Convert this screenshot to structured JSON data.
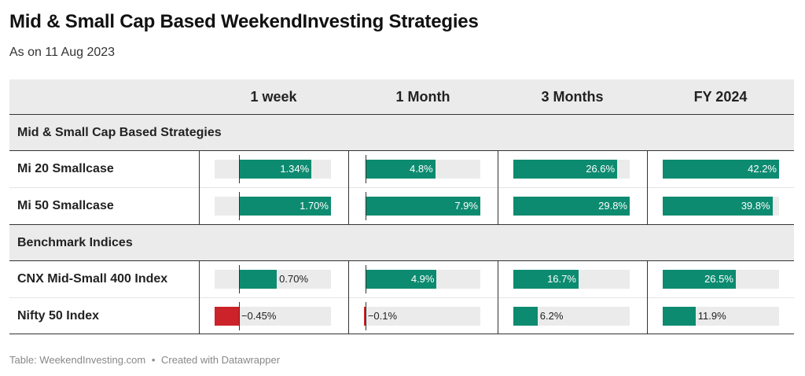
{
  "title": "Mid & Small Cap Based WeekendInvesting Strategies",
  "subtitle": "As on 11 Aug 2023",
  "footer": {
    "source": "Table: WeekendInvesting.com",
    "separator": "•",
    "credit": "Created with Datawrapper"
  },
  "colors": {
    "positive": "#0d8b70",
    "negative": "#cc2229",
    "track": "#ebebeb",
    "header_bg": "#ebebeb"
  },
  "chart_data": {
    "type": "table",
    "columns": [
      "1 week",
      "1 Month",
      "3 Months",
      "FY 2024"
    ],
    "column_ranges": [
      [
        -0.45,
        1.7
      ],
      [
        -0.1,
        7.9
      ],
      [
        0,
        29.8
      ],
      [
        0,
        42.2
      ]
    ],
    "groups": [
      {
        "label": "Mid & Small Cap Based Strategies",
        "rows": [
          {
            "name": "Mi 20 Smallcase",
            "values": [
              1.34,
              4.8,
              26.6,
              42.2
            ],
            "labels": [
              "1.34%",
              "4.8%",
              "26.6%",
              "42.2%"
            ]
          },
          {
            "name": "Mi 50 Smallcase",
            "values": [
              1.7,
              7.9,
              29.8,
              39.8
            ],
            "labels": [
              "1.70%",
              "7.9%",
              "29.8%",
              "39.8%"
            ]
          }
        ]
      },
      {
        "label": "Benchmark Indices",
        "rows": [
          {
            "name": "CNX Mid-Small 400 Index",
            "values": [
              0.7,
              4.9,
              16.7,
              26.5
            ],
            "labels": [
              "0.70%",
              "4.9%",
              "16.7%",
              "26.5%"
            ]
          },
          {
            "name": "Nifty 50 Index",
            "values": [
              -0.45,
              -0.1,
              6.2,
              11.9
            ],
            "labels": [
              "−0.45%",
              "−0.1%",
              "6.2%",
              "11.9%"
            ]
          }
        ]
      }
    ]
  }
}
